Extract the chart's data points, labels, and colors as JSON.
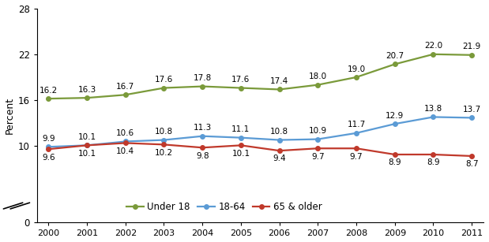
{
  "years": [
    2000,
    2001,
    2002,
    2003,
    2004,
    2005,
    2006,
    2007,
    2008,
    2009,
    2010,
    2011
  ],
  "under18": [
    16.2,
    16.3,
    16.7,
    17.6,
    17.8,
    17.6,
    17.4,
    18.0,
    19.0,
    20.7,
    22.0,
    21.9
  ],
  "age1864": [
    9.9,
    10.1,
    10.6,
    10.8,
    11.3,
    11.1,
    10.8,
    10.9,
    11.7,
    12.9,
    13.8,
    13.7
  ],
  "age65plus": [
    9.6,
    10.1,
    10.4,
    10.2,
    9.8,
    10.1,
    9.4,
    9.7,
    9.7,
    8.9,
    8.9,
    8.7
  ],
  "under18_color": "#7a9a3a",
  "age1864_color": "#5b9bd5",
  "age65plus_color": "#c0392b",
  "ylabel": "Percent",
  "ylim": [
    0,
    28
  ],
  "yticks": [
    0,
    10,
    16,
    22,
    28
  ],
  "legend_labels": [
    "Under 18",
    "18-64",
    "65 & older"
  ],
  "marker": "o",
  "marker_size": 4,
  "linewidth": 1.6,
  "annotation_fontsize": 7.5,
  "background_color": "#ffffff"
}
